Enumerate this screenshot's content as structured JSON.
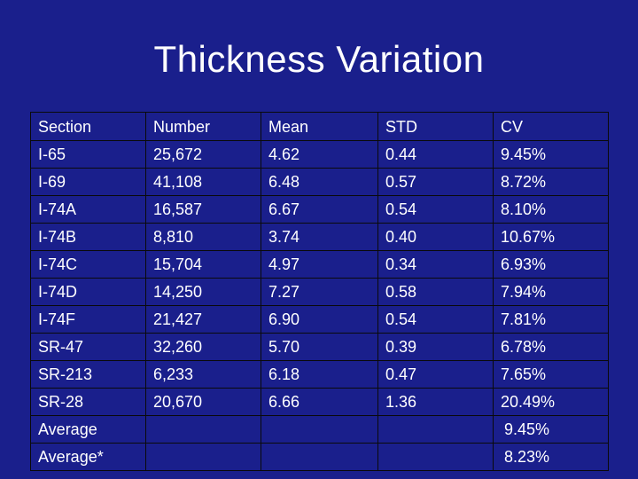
{
  "title": "Thickness Variation",
  "table": {
    "headers": [
      "Section",
      "Number",
      "Mean",
      "STD",
      "CV"
    ],
    "rows": [
      [
        "I-65",
        "25,672",
        "4.62",
        "0.44",
        "9.45%"
      ],
      [
        "I-69",
        "41,108",
        "6.48",
        "0.57",
        "8.72%"
      ],
      [
        "I-74A",
        "16,587",
        "6.67",
        "0.54",
        "8.10%"
      ],
      [
        "I-74B",
        "8,810",
        "3.74",
        "0.40",
        "10.67%"
      ],
      [
        "I-74C",
        "15,704",
        "4.97",
        "0.34",
        "6.93%"
      ],
      [
        "I-74D",
        "14,250",
        "7.27",
        "0.58",
        "7.94%"
      ],
      [
        "I-74F",
        "21,427",
        "6.90",
        "0.54",
        "7.81%"
      ],
      [
        "SR-47",
        "32,260",
        "5.70",
        "0.39",
        "6.78%"
      ],
      [
        "SR-213",
        "6,233",
        "6.18",
        "0.47",
        "7.65%"
      ],
      [
        "SR-28",
        "20,670",
        "6.66",
        "1.36",
        "20.49%"
      ],
      [
        "Average",
        "",
        "",
        "",
        "9.45%"
      ],
      [
        "Average*",
        "",
        "",
        "",
        "8.23%"
      ]
    ]
  },
  "colors": {
    "background": "#1a1f8c",
    "text": "#ffffff",
    "grid": "#0a0a0a"
  }
}
